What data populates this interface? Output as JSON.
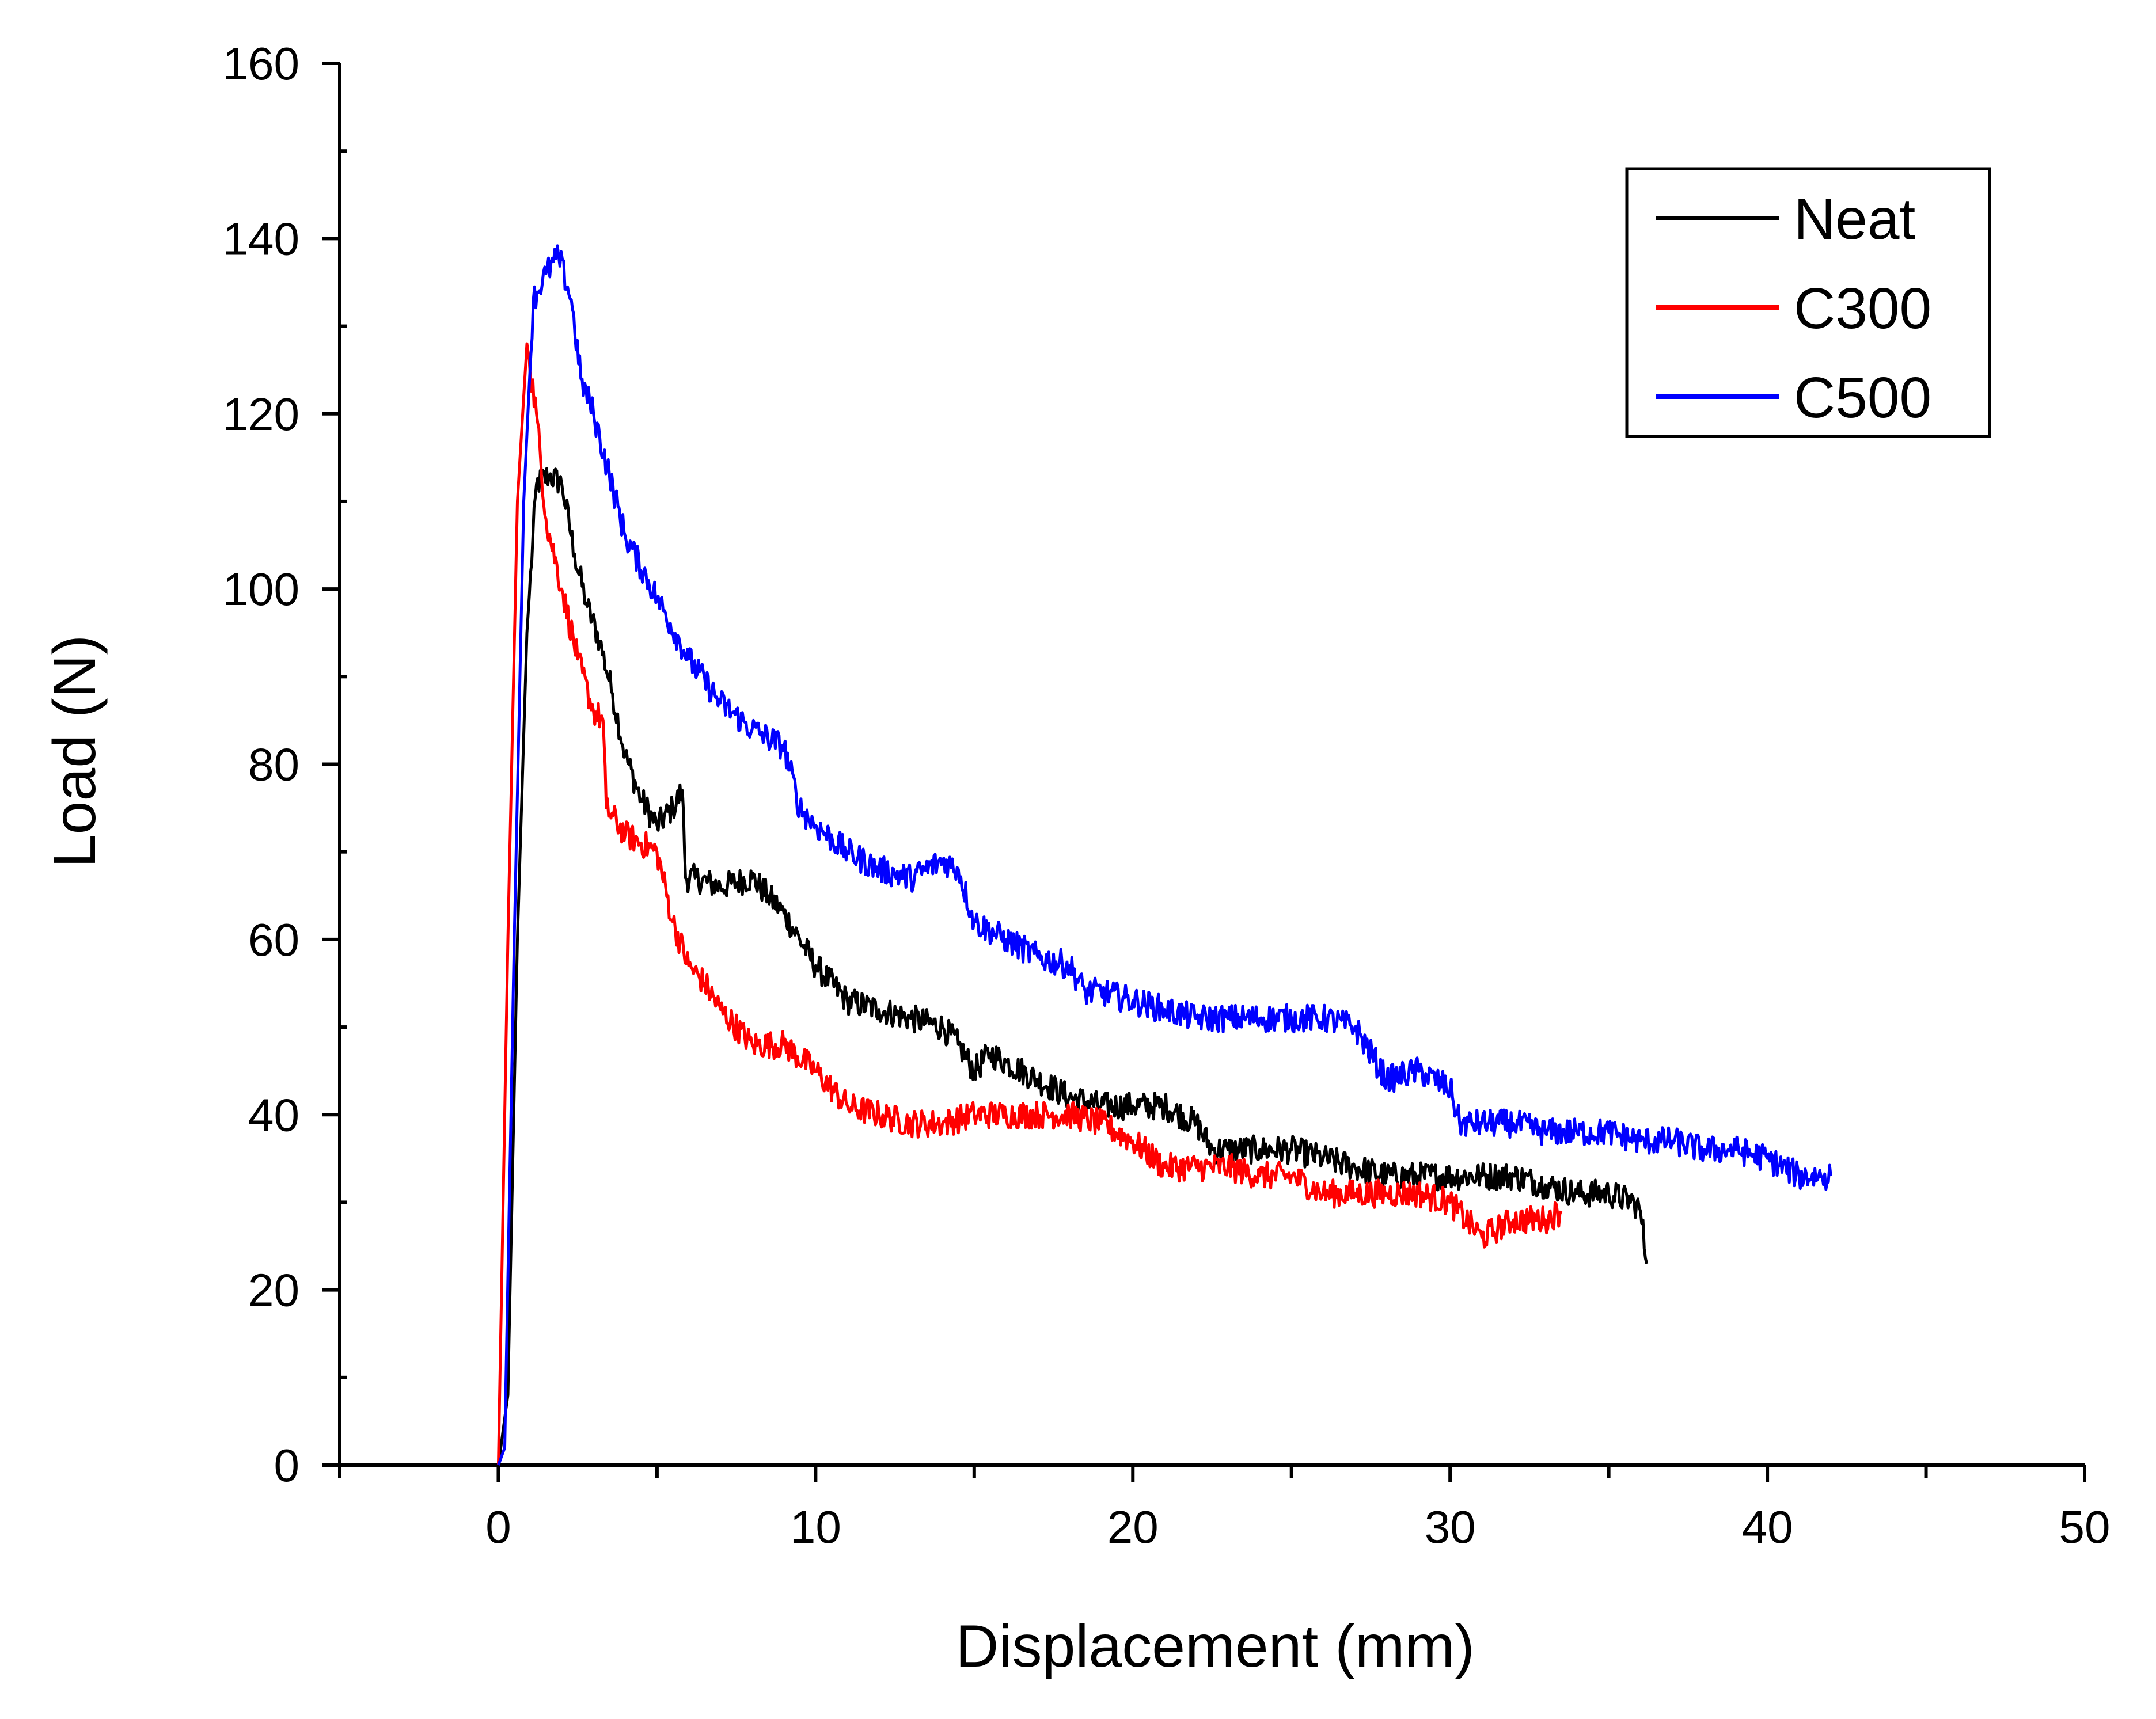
{
  "chart_data": {
    "type": "line",
    "title": "",
    "xlabel": "Displacement (mm)",
    "ylabel": "Load (N)",
    "xlim": [
      -5,
      50
    ],
    "ylim": [
      0,
      160
    ],
    "xticks": [
      0,
      10,
      20,
      30,
      40,
      50
    ],
    "xtick_labels": [
      "0",
      "10",
      "20",
      "30",
      "40",
      "50"
    ],
    "yticks": [
      0,
      20,
      40,
      60,
      80,
      100,
      120,
      140,
      160
    ],
    "ytick_labels": [
      "0",
      "20",
      "40",
      "60",
      "80",
      "100",
      "120",
      "140",
      "160"
    ],
    "x_minor_step": 5,
    "y_minor_step": 10,
    "grid": false,
    "legend_position": "top-right",
    "series": [
      {
        "name": "Neat",
        "color": "#000000",
        "x": [
          0.0,
          0.3,
          0.6,
          0.9,
          1.2,
          1.6,
          2.0,
          2.4,
          2.8,
          3.2,
          3.6,
          4.0,
          4.5,
          5.0,
          5.5,
          5.8,
          5.9,
          6.2,
          7.0,
          8.0,
          8.5,
          9.0,
          9.5,
          10.0,
          11.0,
          12.0,
          13.0,
          14.0,
          14.5,
          15.0,
          15.5,
          16.0,
          17.0,
          18.0,
          19.0,
          20.0,
          21.0,
          22.0,
          22.5,
          23.0,
          24.0,
          25.0,
          26.0,
          27.0,
          28.0,
          29.0,
          30.0,
          31.0,
          32.0,
          33.0,
          34.0,
          35.0,
          35.8,
          36.0,
          36.2
        ],
        "y": [
          0,
          8,
          60,
          95,
          112,
          113,
          112,
          104,
          98,
          94,
          88,
          81,
          76,
          73,
          75,
          77,
          67,
          67,
          66,
          67,
          65,
          63,
          60,
          57,
          53,
          52,
          51,
          50,
          48,
          45,
          47,
          46,
          44,
          42,
          41,
          41,
          41,
          39,
          36,
          36,
          36,
          36,
          35,
          34,
          33,
          33,
          33,
          33,
          33,
          32,
          31,
          31,
          30,
          29,
          23
        ]
      },
      {
        "name": "C300",
        "color": "#ff0000",
        "x": [
          0.0,
          0.3,
          0.6,
          0.9,
          1.2,
          1.5,
          2.0,
          2.5,
          3.0,
          3.3,
          3.4,
          4.0,
          5.0,
          5.5,
          6.0,
          6.5,
          7.0,
          8.0,
          9.0,
          10.0,
          11.0,
          12.0,
          13.0,
          14.0,
          15.0,
          16.0,
          17.0,
          18.0,
          19.0,
          20.0,
          21.0,
          22.0,
          23.0,
          24.0,
          25.0,
          26.0,
          27.0,
          28.0,
          29.0,
          30.0,
          31.0,
          31.5,
          32.0,
          33.0,
          33.5
        ],
        "y": [
          0,
          60,
          110,
          128,
          120,
          108,
          100,
          92,
          86,
          85,
          75,
          72,
          70,
          62,
          57,
          55,
          52,
          48,
          48,
          45,
          41,
          40,
          39,
          39,
          40,
          40,
          40,
          40,
          39,
          37,
          34,
          34,
          34,
          33,
          33,
          31,
          31,
          31,
          31,
          30,
          26,
          27,
          28,
          28,
          29
        ]
      },
      {
        "name": "C500",
        "color": "#0000ff",
        "x": [
          0.0,
          0.2,
          0.5,
          0.8,
          1.1,
          1.5,
          1.9,
          2.3,
          2.6,
          3.0,
          3.5,
          4.0,
          5.0,
          6.0,
          7.0,
          8.0,
          9.0,
          9.5,
          10.0,
          11.0,
          12.0,
          13.0,
          14.0,
          14.5,
          15.0,
          16.0,
          17.0,
          18.0,
          18.5,
          19.0,
          20.0,
          21.0,
          22.0,
          23.0,
          24.0,
          25.0,
          26.0,
          27.0,
          28.0,
          29.0,
          30.0,
          30.3,
          31.0,
          32.0,
          33.0,
          34.0,
          35.0,
          36.0,
          37.0,
          38.0,
          39.0,
          40.0,
          41.0,
          42.0
        ],
        "y": [
          0,
          2,
          60,
          110,
          133,
          136,
          138,
          133,
          124,
          120,
          113,
          106,
          99,
          92,
          87,
          84,
          82,
          75,
          73,
          70,
          68,
          67,
          69,
          68,
          62,
          60,
          58,
          57,
          54,
          54,
          53,
          52,
          51,
          51,
          51,
          51,
          51,
          50,
          44,
          45,
          43,
          39,
          39,
          39,
          38,
          38,
          38,
          37,
          37,
          36,
          36,
          35,
          33,
          33
        ]
      }
    ]
  }
}
